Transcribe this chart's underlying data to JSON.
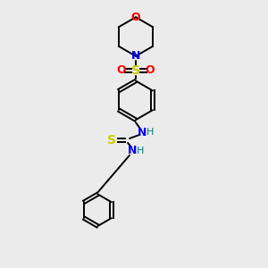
{
  "bg_color": "#ebebeb",
  "bond_color": "#000000",
  "colors": {
    "O": "#ff0000",
    "N": "#0000ee",
    "S_thio": "#cccc00",
    "S_sulfonyl": "#cccc00",
    "H": "#008080",
    "C": "#000000"
  },
  "figsize": [
    3.0,
    3.0
  ],
  "dpi": 100
}
